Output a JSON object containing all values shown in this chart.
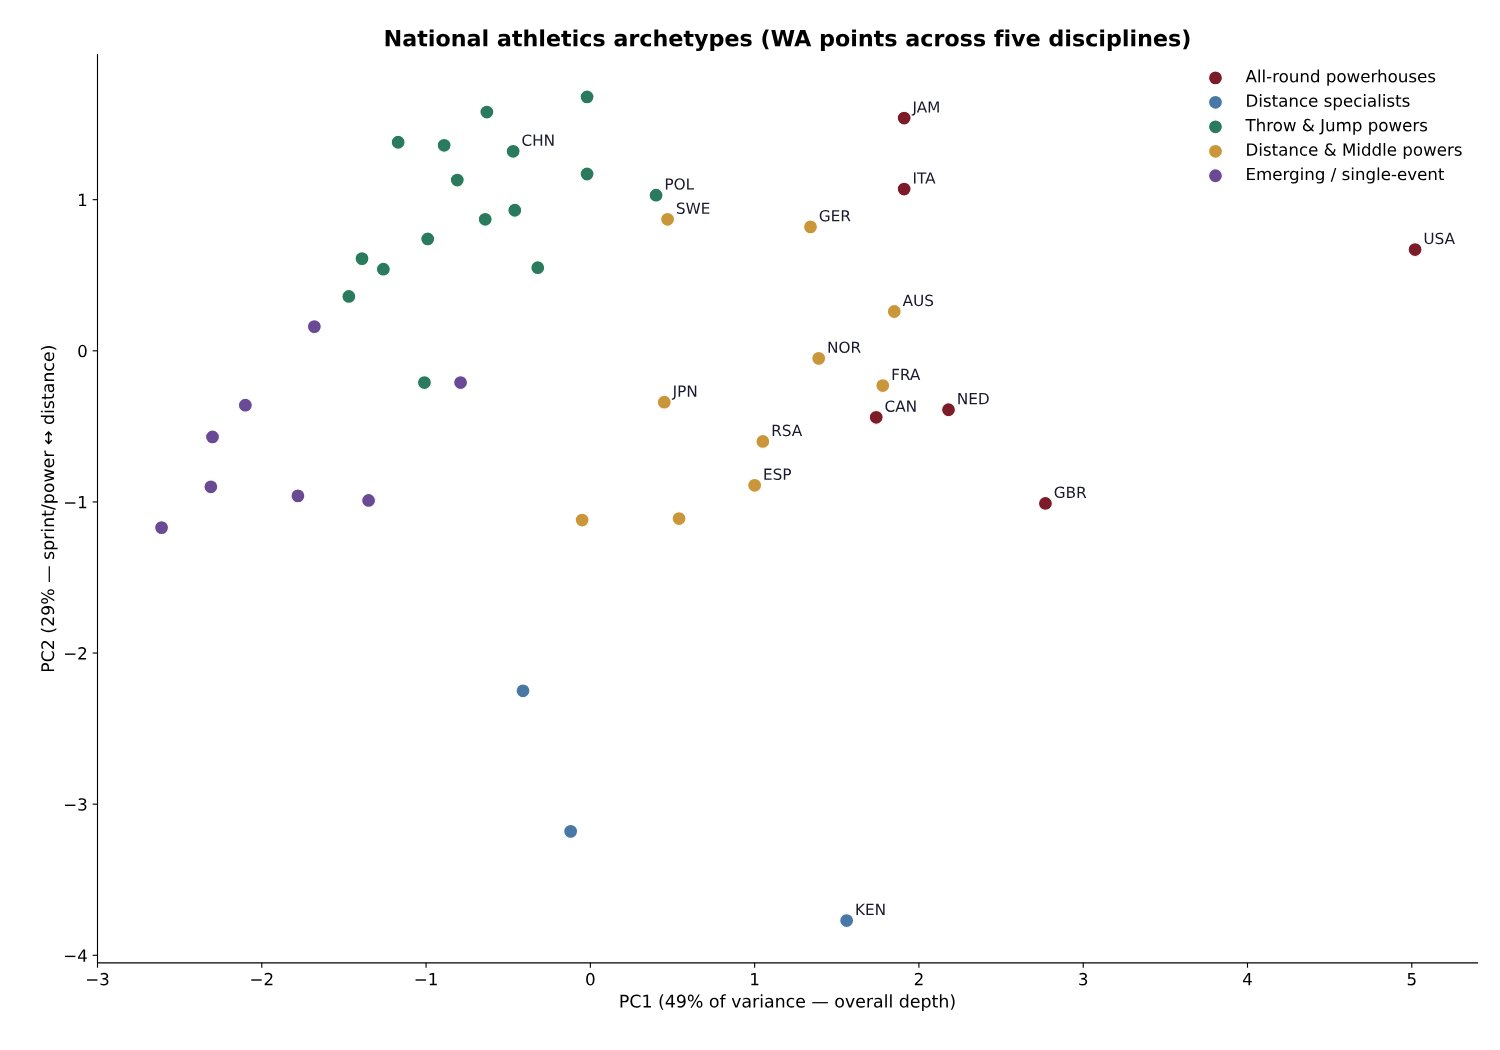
{
  "chart_data": {
    "type": "scatter",
    "title": "National athletics archetypes (WA points across five disciplines)",
    "xlabel": "PC1 (49% of variance — overall depth)",
    "ylabel": "PC2 (29% — sprint/power ↔ distance)",
    "xlim": [
      -3,
      5.4
    ],
    "ylim": [
      -4.05,
      1.96
    ],
    "xticks": [
      -3,
      -2,
      -1,
      0,
      1,
      2,
      3,
      4,
      5
    ],
    "yticks": [
      -4,
      -3,
      -2,
      -1,
      0,
      1
    ],
    "grid": false,
    "legend": "top right",
    "marker": "circle",
    "series": [
      {
        "name": "All-round powerhouses",
        "color": "#7b1c28",
        "x": [
          1.91,
          1.91,
          5.02,
          1.74,
          2.18,
          2.77
        ],
        "values": [
          1.54,
          1.07,
          0.67,
          -0.44,
          -0.39,
          -1.01
        ]
      },
      {
        "name": "Distance specialists",
        "color": "#4a78a6",
        "x": [
          -0.41,
          -0.12,
          1.56
        ],
        "values": [
          -2.25,
          -3.18,
          -3.77
        ]
      },
      {
        "name": "Throw & Jump powers",
        "color": "#2a7a5e",
        "x": [
          -0.02,
          -0.63,
          -1.17,
          -0.89,
          -0.47,
          -0.81,
          -0.02,
          0.4,
          -0.64,
          -0.46,
          -0.99,
          -1.39,
          -1.26,
          -0.32,
          -1.47,
          -1.01
        ],
        "values": [
          1.68,
          1.58,
          1.38,
          1.36,
          1.32,
          1.13,
          1.17,
          1.03,
          0.87,
          0.93,
          0.74,
          0.61,
          0.54,
          0.55,
          0.36,
          -0.21
        ]
      },
      {
        "name": "Distance & Middle powers",
        "color": "#c9973a",
        "x": [
          0.47,
          1.34,
          1.85,
          1.39,
          1.78,
          0.45,
          1.05,
          1.0,
          -0.05,
          0.54
        ],
        "values": [
          0.87,
          0.82,
          0.26,
          -0.05,
          -0.23,
          -0.34,
          -0.6,
          -0.89,
          -1.12,
          -1.11
        ]
      },
      {
        "name": "Emerging / single-event",
        "color": "#6a4a94",
        "x": [
          -1.68,
          -0.79,
          -2.1,
          -2.3,
          -2.31,
          -1.78,
          -1.35,
          -2.61
        ],
        "values": [
          0.16,
          -0.21,
          -0.36,
          -0.57,
          -0.9,
          -0.96,
          -0.99,
          -1.17
        ]
      }
    ],
    "annotations": [
      {
        "text": "JAM",
        "x": 1.91,
        "y": 1.54
      },
      {
        "text": "ITA",
        "x": 1.91,
        "y": 1.07
      },
      {
        "text": "USA",
        "x": 5.02,
        "y": 0.67
      },
      {
        "text": "CAN",
        "x": 1.74,
        "y": -0.44
      },
      {
        "text": "NED",
        "x": 2.18,
        "y": -0.39
      },
      {
        "text": "GBR",
        "x": 2.77,
        "y": -1.01
      },
      {
        "text": "KEN",
        "x": 1.56,
        "y": -3.77
      },
      {
        "text": "CHN",
        "x": -0.47,
        "y": 1.32
      },
      {
        "text": "POL",
        "x": 0.4,
        "y": 1.03
      },
      {
        "text": "SWE",
        "x": 0.47,
        "y": 0.87
      },
      {
        "text": "GER",
        "x": 1.34,
        "y": 0.82
      },
      {
        "text": "AUS",
        "x": 1.85,
        "y": 0.26
      },
      {
        "text": "NOR",
        "x": 1.39,
        "y": -0.05
      },
      {
        "text": "FRA",
        "x": 1.78,
        "y": -0.23
      },
      {
        "text": "JPN",
        "x": 0.45,
        "y": -0.34
      },
      {
        "text": "RSA",
        "x": 1.05,
        "y": -0.6
      },
      {
        "text": "ESP",
        "x": 1.0,
        "y": -0.89
      }
    ]
  }
}
